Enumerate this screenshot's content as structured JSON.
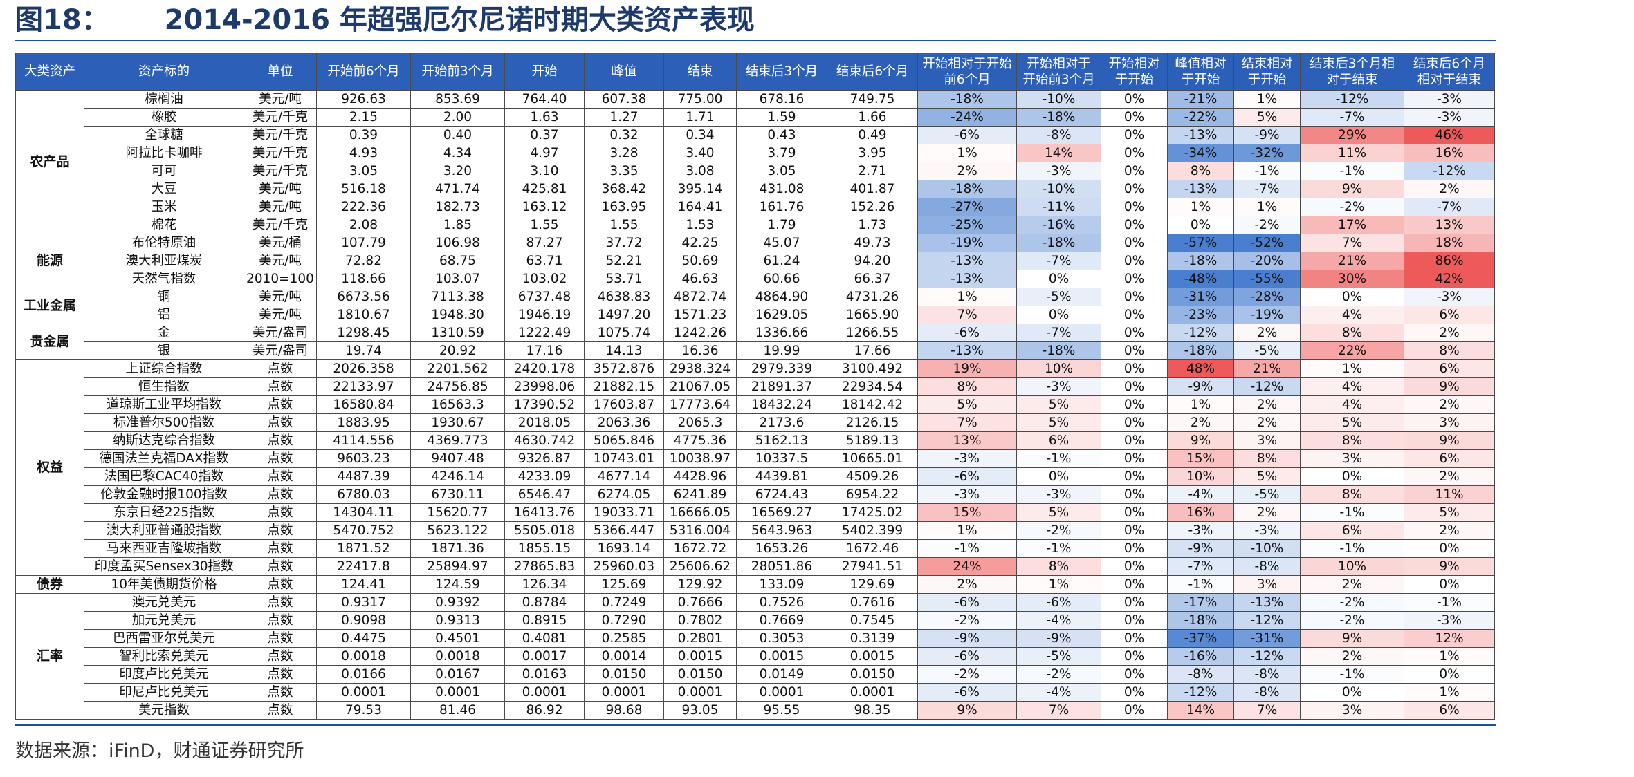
{
  "title": {
    "figure_no": "图18：",
    "text": "2014-2016 年超强厄尔尼诺时期大类资产表现"
  },
  "headers": [
    "大类资产",
    "资产标的",
    "单位",
    "开始前6个月",
    "开始前3个月",
    "开始",
    "峰值",
    "结束",
    "结束后3个月",
    "结束后6个月",
    "开始相对于开始前6个月",
    "开始相对于开始前3个月",
    "开始相对于开始",
    "峰值相对于开始",
    "结束相对于开始",
    "结束后3个月相对于结束",
    "结束后6个月相对于结束"
  ],
  "source": "数据来源：iFinD，财通证券研究所",
  "colors": {
    "header_bg": "#2b5fb8",
    "neg_scale": "#4a7fd0",
    "pos_scale": "#ee5a5a"
  },
  "groups": [
    {
      "category": "农产品",
      "rows": [
        [
          "棕榈油",
          "美元/吨",
          "926.63",
          "853.69",
          "764.40",
          "607.38",
          "775.00",
          "678.16",
          "749.75",
          "-18%",
          "-10%",
          "0%",
          "-21%",
          "1%",
          "-12%",
          "-3%"
        ],
        [
          "橡胶",
          "美元/千克",
          "2.15",
          "2.00",
          "1.63",
          "1.27",
          "1.71",
          "1.59",
          "1.66",
          "-24%",
          "-18%",
          "0%",
          "-22%",
          "5%",
          "-7%",
          "-3%"
        ],
        [
          "全球糖",
          "美元/千克",
          "0.39",
          "0.40",
          "0.37",
          "0.32",
          "0.34",
          "0.43",
          "0.49",
          "-6%",
          "-8%",
          "0%",
          "-13%",
          "-9%",
          "29%",
          "46%"
        ],
        [
          "阿拉比卡咖啡",
          "美元/千克",
          "4.93",
          "4.34",
          "4.97",
          "3.28",
          "3.40",
          "3.79",
          "3.95",
          "1%",
          "14%",
          "0%",
          "-34%",
          "-32%",
          "11%",
          "16%"
        ],
        [
          "可可",
          "美元/千克",
          "3.05",
          "3.20",
          "3.10",
          "3.35",
          "3.08",
          "3.05",
          "2.71",
          "2%",
          "-3%",
          "0%",
          "8%",
          "-1%",
          "-1%",
          "-12%"
        ],
        [
          "大豆",
          "美元/吨",
          "516.18",
          "471.74",
          "425.81",
          "368.42",
          "395.14",
          "431.08",
          "401.87",
          "-18%",
          "-10%",
          "0%",
          "-13%",
          "-7%",
          "9%",
          "2%"
        ],
        [
          "玉米",
          "美元/吨",
          "222.36",
          "182.73",
          "163.12",
          "163.95",
          "164.41",
          "161.76",
          "152.26",
          "-27%",
          "-11%",
          "0%",
          "1%",
          "1%",
          "-2%",
          "-7%"
        ],
        [
          "棉花",
          "美元/千克",
          "2.08",
          "1.85",
          "1.55",
          "1.55",
          "1.53",
          "1.79",
          "1.73",
          "-25%",
          "-16%",
          "0%",
          "0%",
          "-2%",
          "17%",
          "13%"
        ]
      ]
    },
    {
      "category": "能源",
      "rows": [
        [
          "布伦特原油",
          "美元/桶",
          "107.79",
          "106.98",
          "87.27",
          "37.72",
          "42.25",
          "45.07",
          "49.73",
          "-19%",
          "-18%",
          "0%",
          "-57%",
          "-52%",
          "7%",
          "18%"
        ],
        [
          "澳大利亚煤炭",
          "美元/吨",
          "72.82",
          "68.75",
          "63.71",
          "52.21",
          "50.69",
          "61.24",
          "94.20",
          "-13%",
          "-7%",
          "0%",
          "-18%",
          "-20%",
          "21%",
          "86%"
        ],
        [
          "天然气指数",
          "2010=100",
          "118.66",
          "103.07",
          "103.02",
          "53.71",
          "46.63",
          "60.66",
          "66.37",
          "-13%",
          "0%",
          "0%",
          "-48%",
          "-55%",
          "30%",
          "42%"
        ]
      ]
    },
    {
      "category": "工业金属",
      "rows": [
        [
          "铜",
          "美元/吨",
          "6673.56",
          "7113.38",
          "6737.48",
          "4638.83",
          "4872.74",
          "4864.90",
          "4731.26",
          "1%",
          "-5%",
          "0%",
          "-31%",
          "-28%",
          "0%",
          "-3%"
        ],
        [
          "铝",
          "美元/吨",
          "1810.67",
          "1948.30",
          "1946.19",
          "1497.20",
          "1571.23",
          "1629.05",
          "1665.90",
          "7%",
          "0%",
          "0%",
          "-23%",
          "-19%",
          "4%",
          "6%"
        ]
      ]
    },
    {
      "category": "贵金属",
      "rows": [
        [
          "金",
          "美元/盎司",
          "1298.45",
          "1310.59",
          "1222.49",
          "1075.74",
          "1242.26",
          "1336.66",
          "1266.55",
          "-6%",
          "-7%",
          "0%",
          "-12%",
          "2%",
          "8%",
          "2%"
        ],
        [
          "银",
          "美元/盎司",
          "19.74",
          "20.92",
          "17.16",
          "14.13",
          "16.36",
          "19.99",
          "17.66",
          "-13%",
          "-18%",
          "0%",
          "-18%",
          "-5%",
          "22%",
          "8%"
        ]
      ]
    },
    {
      "category": "权益",
      "rows": [
        [
          "上证综合指数",
          "点数",
          "2026.358",
          "2201.562",
          "2420.178",
          "3572.876",
          "2938.324",
          "2979.339",
          "3100.492",
          "19%",
          "10%",
          "0%",
          "48%",
          "21%",
          "1%",
          "6%"
        ],
        [
          "恒生指数",
          "点数",
          "22133.97",
          "24756.85",
          "23998.06",
          "21882.15",
          "21067.05",
          "21891.37",
          "22934.54",
          "8%",
          "-3%",
          "0%",
          "-9%",
          "-12%",
          "4%",
          "9%"
        ],
        [
          "道琼斯工业平均指数",
          "点数",
          "16580.84",
          "16563.3",
          "17390.52",
          "17603.87",
          "17773.64",
          "18432.24",
          "18142.42",
          "5%",
          "5%",
          "0%",
          "1%",
          "2%",
          "4%",
          "2%"
        ],
        [
          "标准普尔500指数",
          "点数",
          "1883.95",
          "1930.67",
          "2018.05",
          "2063.36",
          "2065.3",
          "2173.6",
          "2126.15",
          "7%",
          "5%",
          "0%",
          "2%",
          "2%",
          "5%",
          "3%"
        ],
        [
          "纳斯达克综合指数",
          "点数",
          "4114.556",
          "4369.773",
          "4630.742",
          "5065.846",
          "4775.36",
          "5162.13",
          "5189.13",
          "13%",
          "6%",
          "0%",
          "9%",
          "3%",
          "8%",
          "9%"
        ],
        [
          "德国法兰克福DAX指数",
          "点数",
          "9603.23",
          "9407.48",
          "9326.87",
          "10743.01",
          "10038.97",
          "10337.5",
          "10665.01",
          "-3%",
          "-1%",
          "0%",
          "15%",
          "8%",
          "3%",
          "6%"
        ],
        [
          "法国巴黎CAC40指数",
          "点数",
          "4487.39",
          "4246.14",
          "4233.09",
          "4677.14",
          "4428.96",
          "4439.81",
          "4509.26",
          "-6%",
          "0%",
          "0%",
          "10%",
          "5%",
          "0%",
          "2%"
        ],
        [
          "伦敦金融时报100指数",
          "点数",
          "6780.03",
          "6730.11",
          "6546.47",
          "6274.05",
          "6241.89",
          "6724.43",
          "6954.22",
          "-3%",
          "-3%",
          "0%",
          "-4%",
          "-5%",
          "8%",
          "11%"
        ],
        [
          "东京日经225指数",
          "点数",
          "14304.11",
          "15620.77",
          "16413.76",
          "19033.71",
          "16666.05",
          "16569.27",
          "17425.02",
          "15%",
          "5%",
          "0%",
          "16%",
          "2%",
          "-1%",
          "5%"
        ],
        [
          "澳大利亚普通股指数",
          "点数",
          "5470.752",
          "5623.122",
          "5505.018",
          "5366.447",
          "5316.004",
          "5643.963",
          "5402.399",
          "1%",
          "-2%",
          "0%",
          "-3%",
          "-3%",
          "6%",
          "2%"
        ],
        [
          "马来西亚吉隆坡指数",
          "点数",
          "1871.52",
          "1871.36",
          "1855.15",
          "1693.14",
          "1672.72",
          "1653.26",
          "1672.46",
          "-1%",
          "-1%",
          "0%",
          "-9%",
          "-10%",
          "-1%",
          "0%"
        ],
        [
          "印度孟买Sensex30指数",
          "点数",
          "22417.8",
          "25894.97",
          "27865.83",
          "25960.03",
          "25606.62",
          "28051.86",
          "27941.51",
          "24%",
          "8%",
          "0%",
          "-7%",
          "-8%",
          "10%",
          "9%"
        ]
      ]
    },
    {
      "category": "债券",
      "rows": [
        [
          "10年美债期货价格",
          "点数",
          "124.41",
          "124.59",
          "126.34",
          "125.69",
          "129.92",
          "133.09",
          "129.69",
          "2%",
          "1%",
          "0%",
          "-1%",
          "3%",
          "2%",
          "0%"
        ]
      ]
    },
    {
      "category": "汇率",
      "rows": [
        [
          "澳元兑美元",
          "点数",
          "0.9317",
          "0.9392",
          "0.8784",
          "0.7249",
          "0.7666",
          "0.7526",
          "0.7616",
          "-6%",
          "-6%",
          "0%",
          "-17%",
          "-13%",
          "-2%",
          "-1%"
        ],
        [
          "加元兑美元",
          "点数",
          "0.9098",
          "0.9313",
          "0.8915",
          "0.7290",
          "0.7802",
          "0.7669",
          "0.7545",
          "-2%",
          "-4%",
          "0%",
          "-18%",
          "-12%",
          "-2%",
          "-3%"
        ],
        [
          "巴西雷亚尔兑美元",
          "点数",
          "0.4475",
          "0.4501",
          "0.4081",
          "0.2585",
          "0.2801",
          "0.3053",
          "0.3139",
          "-9%",
          "-9%",
          "0%",
          "-37%",
          "-31%",
          "9%",
          "12%"
        ],
        [
          "智利比索兑美元",
          "点数",
          "0.0018",
          "0.0018",
          "0.0017",
          "0.0014",
          "0.0015",
          "0.0015",
          "0.0015",
          "-6%",
          "-5%",
          "0%",
          "-16%",
          "-12%",
          "2%",
          "1%"
        ],
        [
          "印度卢比兑美元",
          "点数",
          "0.0166",
          "0.0167",
          "0.0163",
          "0.0150",
          "0.0150",
          "0.0149",
          "0.0150",
          "-2%",
          "-2%",
          "0%",
          "-8%",
          "-8%",
          "-1%",
          "0%"
        ],
        [
          "印尼卢比兑美元",
          "点数",
          "0.0001",
          "0.0001",
          "0.0001",
          "0.0001",
          "0.0001",
          "0.0001",
          "0.0001",
          "-6%",
          "-4%",
          "0%",
          "-12%",
          "-8%",
          "0%",
          "1%"
        ],
        [
          "美元指数",
          "点数",
          "79.53",
          "81.46",
          "86.92",
          "98.68",
          "93.05",
          "95.55",
          "98.35",
          "9%",
          "7%",
          "0%",
          "14%",
          "7%",
          "3%",
          "6%"
        ]
      ]
    }
  ]
}
